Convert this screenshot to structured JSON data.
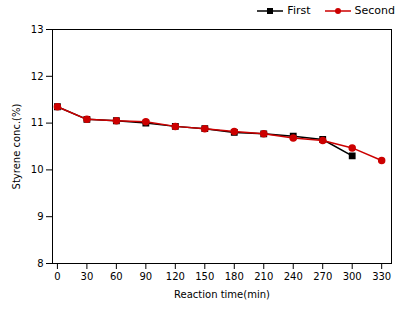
{
  "chart_data": {
    "type": "line",
    "xlabel": "Reaction time(min)",
    "ylabel": "Styrene conc.(%)",
    "series": [
      {
        "name": "First",
        "color": "#000000",
        "marker": "square",
        "x": [
          0,
          30,
          60,
          90,
          120,
          150,
          180,
          210,
          240,
          270,
          300
        ],
        "values": [
          11.35,
          11.08,
          11.05,
          11.0,
          10.93,
          10.88,
          10.8,
          10.77,
          10.72,
          10.65,
          10.3
        ]
      },
      {
        "name": "Second",
        "color": "#cc0000",
        "marker": "circle",
        "x": [
          0,
          30,
          60,
          90,
          120,
          150,
          180,
          210,
          240,
          270,
          300,
          330
        ],
        "values": [
          11.35,
          11.08,
          11.05,
          11.03,
          10.93,
          10.88,
          10.82,
          10.77,
          10.68,
          10.63,
          10.47,
          10.2
        ]
      }
    ],
    "xlim": [
      -5,
      340
    ],
    "ylim": [
      8,
      13
    ],
    "xticks": [
      0,
      30,
      60,
      90,
      120,
      150,
      180,
      210,
      240,
      270,
      300,
      330
    ],
    "yticks": [
      8,
      9,
      10,
      11,
      12,
      13
    ],
    "legend": "upper right",
    "grid": false
  }
}
